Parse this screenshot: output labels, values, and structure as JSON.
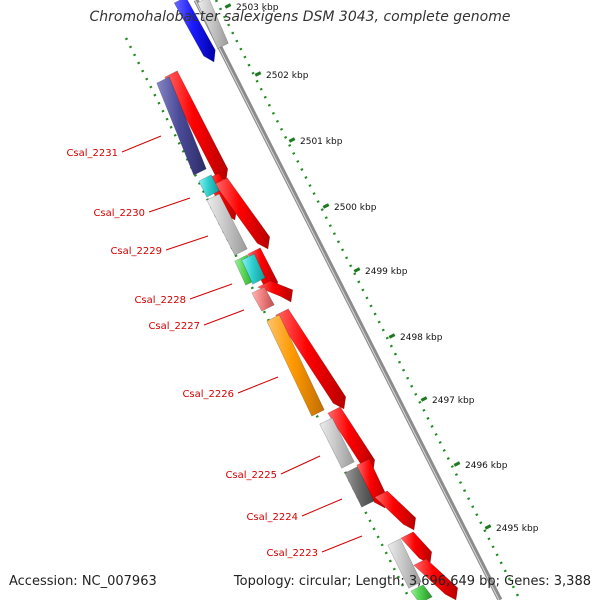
{
  "title": "Chromohalobacter salexigens DSM 3043, complete genome",
  "accession_text": "Accession: NC_007963",
  "topology_text": "Topology: circular; Length: 3,696,649 bp; Genes: 3,388",
  "colors": {
    "backbone": "#8c8c8c",
    "scale_dots": "#228b22",
    "forward_cds": "#ff0000",
    "label": "#d40000",
    "blue": "#1a1aff",
    "navy": "#4b4b9a",
    "cyan": "#2fd0d0",
    "green": "#4fcf4f",
    "pink": "#f08080",
    "orange": "#ff9900",
    "light_gray": "#c8c8c8",
    "dark_gray": "#6e6e6e"
  },
  "scale_ticks": [
    {
      "label": "2503 kbp"
    },
    {
      "label": "2502 kbp"
    },
    {
      "label": "2501 kbp"
    },
    {
      "label": "2500 kbp"
    },
    {
      "label": "2499 kbp"
    },
    {
      "label": "2498 kbp"
    },
    {
      "label": "2497 kbp"
    },
    {
      "label": "2496 kbp"
    },
    {
      "label": "2495 kbp"
    }
  ],
  "gene_labels": [
    "Csal_2231",
    "Csal_2230",
    "Csal_2229",
    "Csal_2228",
    "Csal_2227",
    "Csal_2226",
    "Csal_2225",
    "Csal_2224",
    "Csal_2223"
  ]
}
